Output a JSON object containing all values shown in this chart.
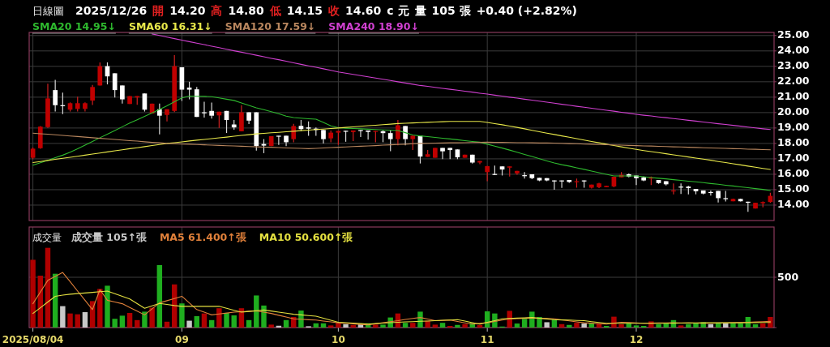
{
  "chart_data": [
    {
      "type": "candlestick",
      "title": "日線圖",
      "annotations": [
        "2025/12/26",
        "開",
        "14.20",
        "高",
        "14.80",
        "低",
        "14.15",
        "收",
        "14.60",
        "c 元",
        "量",
        "105 張",
        "+0.40 (+2.82%)"
      ],
      "categories": [
        "2025/08/04",
        null,
        null,
        null,
        null,
        null,
        null,
        null,
        null,
        null,
        null,
        null,
        null,
        null,
        null,
        null,
        null,
        null,
        null,
        null,
        "09",
        null,
        null,
        null,
        null,
        null,
        null,
        null,
        null,
        null,
        null,
        null,
        null,
        null,
        null,
        null,
        null,
        null,
        null,
        null,
        null,
        "10",
        null,
        null,
        null,
        null,
        null,
        null,
        null,
        null,
        null,
        null,
        null,
        null,
        null,
        null,
        null,
        null,
        null,
        null,
        null,
        "11",
        null,
        null,
        null,
        null,
        null,
        null,
        null,
        null,
        null,
        null,
        null,
        null,
        null,
        null,
        null,
        null,
        null,
        null,
        null,
        "12",
        null,
        null,
        null,
        null,
        null,
        null,
        null,
        null,
        null,
        null,
        null,
        null,
        null,
        null,
        null,
        null,
        null,
        null
      ],
      "ohlc": [
        [
          17.07,
          17.74,
          16.98,
          17.66
        ],
        [
          17.69,
          19.13,
          17.66,
          19.09
        ],
        [
          19.06,
          21.88,
          19.01,
          20.92
        ],
        [
          21.46,
          22.13,
          20.07,
          20.48
        ],
        [
          20.48,
          21.29,
          19.9,
          20.48
        ],
        [
          20.19,
          20.66,
          20.07,
          20.61
        ],
        [
          20.24,
          21.03,
          20.07,
          20.61
        ],
        [
          20.24,
          20.66,
          20.07,
          20.61
        ],
        [
          20.78,
          21.79,
          20.49,
          21.66
        ],
        [
          21.76,
          23.26,
          21.76,
          23.01
        ],
        [
          23.01,
          23.26,
          21.83,
          22.35
        ],
        [
          22.55,
          22.55,
          20.98,
          21.46
        ],
        [
          21.76,
          21.76,
          20.58,
          20.86
        ],
        [
          20.56,
          21.07,
          20.56,
          21.07
        ],
        [
          20.98,
          21.07,
          20.51,
          21.07
        ],
        [
          21.24,
          21.24,
          20.07,
          20.19
        ],
        [
          19.94,
          20.58,
          19.94,
          20.58
        ],
        [
          20.22,
          20.58,
          18.59,
          19.8
        ],
        [
          19.85,
          20.22,
          19.43,
          20.22
        ],
        [
          20.11,
          23.73,
          20.03,
          23.01
        ],
        [
          22.94,
          22.94,
          20.75,
          21.49
        ],
        [
          21.62,
          22.0,
          20.86,
          21.49
        ],
        [
          21.51,
          21.66,
          19.72,
          19.72
        ],
        [
          20.02,
          20.7,
          19.68,
          20.02
        ],
        [
          20.11,
          20.65,
          19.61,
          19.8
        ],
        [
          19.82,
          20.06,
          19.01,
          20.06
        ],
        [
          20.11,
          20.11,
          18.68,
          19.52
        ],
        [
          19.23,
          19.52,
          18.89,
          19.04
        ],
        [
          18.79,
          20.48,
          18.79,
          20.02
        ],
        [
          20.02,
          20.02,
          19.26,
          19.48
        ],
        [
          20.02,
          20.02,
          17.54,
          17.83
        ],
        [
          17.96,
          18.28,
          17.37,
          17.86
        ],
        [
          17.83,
          18.47,
          17.83,
          18.47
        ],
        [
          18.5,
          18.5,
          17.91,
          18.45
        ],
        [
          18.5,
          18.5,
          17.83,
          18.08
        ],
        [
          18.28,
          19.27,
          18.08,
          19.13
        ],
        [
          19.14,
          19.52,
          18.79,
          18.93
        ],
        [
          19.04,
          19.43,
          18.5,
          18.96
        ],
        [
          18.96,
          19.04,
          18.5,
          18.87
        ],
        [
          18.87,
          18.87,
          18.0,
          18.28
        ],
        [
          18.33,
          18.84,
          18.08,
          18.7
        ],
        [
          18.7,
          18.81,
          17.91,
          18.81
        ],
        [
          18.82,
          18.82,
          18.11,
          18.8
        ],
        [
          18.74,
          18.84,
          18.16,
          18.84
        ],
        [
          18.87,
          18.87,
          18.42,
          18.87
        ],
        [
          18.84,
          18.84,
          18.25,
          18.75
        ],
        [
          18.75,
          18.81,
          18.08,
          18.81
        ],
        [
          18.79,
          18.87,
          18.08,
          18.67
        ],
        [
          18.67,
          18.87,
          17.49,
          18.28
        ],
        [
          18.28,
          19.52,
          17.88,
          19.18
        ],
        [
          19.13,
          19.13,
          17.88,
          18.28
        ],
        [
          18.28,
          18.5,
          17.57,
          18.5
        ],
        [
          18.5,
          18.5,
          16.7,
          17.15
        ],
        [
          17.13,
          17.57,
          17.13,
          17.3
        ],
        [
          17.07,
          17.71,
          17.07,
          17.71
        ],
        [
          17.71,
          17.71,
          16.98,
          17.49
        ],
        [
          17.71,
          17.71,
          16.98,
          17.57
        ],
        [
          17.61,
          17.61,
          16.98,
          17.1
        ],
        [
          17.07,
          17.27,
          17.07,
          17.27
        ],
        [
          17.27,
          17.27,
          16.7,
          16.76
        ],
        [
          16.76,
          16.86,
          16.66,
          16.86
        ],
        [
          16.14,
          16.53,
          15.55,
          16.53
        ],
        [
          16.02,
          16.56,
          15.94,
          16.02
        ],
        [
          16.51,
          16.51,
          15.92,
          16.31
        ],
        [
          16.43,
          16.51,
          15.85,
          16.51
        ],
        [
          16.06,
          16.22,
          15.97,
          16.22
        ],
        [
          15.94,
          16.14,
          15.72,
          15.94
        ],
        [
          16.0,
          16.0,
          15.68,
          15.75
        ],
        [
          15.77,
          15.77,
          15.55,
          15.6
        ],
        [
          15.75,
          15.75,
          15.55,
          15.6
        ],
        [
          15.6,
          15.6,
          15.0,
          15.55
        ],
        [
          15.6,
          15.6,
          15.12,
          15.55
        ],
        [
          15.63,
          15.63,
          15.45,
          15.5
        ],
        [
          15.5,
          15.72,
          15.13,
          15.55
        ],
        [
          15.6,
          15.6,
          15.13,
          15.55
        ],
        [
          15.13,
          15.33,
          15.08,
          15.33
        ],
        [
          15.16,
          15.45,
          15.1,
          15.41
        ],
        [
          15.16,
          15.25,
          15.16,
          15.25
        ],
        [
          15.21,
          15.84,
          15.16,
          15.84
        ],
        [
          15.8,
          16.14,
          15.8,
          15.97
        ],
        [
          16.0,
          16.05,
          15.8,
          15.85
        ],
        [
          15.92,
          15.92,
          15.3,
          15.75
        ],
        [
          15.8,
          15.85,
          15.55,
          15.6
        ],
        [
          15.72,
          15.85,
          15.3,
          15.8
        ],
        [
          15.63,
          15.63,
          15.38,
          15.43
        ],
        [
          15.55,
          15.55,
          15.28,
          15.35
        ],
        [
          14.9,
          15.4,
          14.7,
          14.95
        ],
        [
          15.2,
          15.4,
          14.72,
          15.15
        ],
        [
          15.2,
          15.25,
          14.7,
          15.1
        ],
        [
          15.05,
          15.05,
          14.7,
          14.9
        ],
        [
          14.95,
          14.95,
          14.7,
          14.75
        ],
        [
          14.85,
          14.95,
          14.62,
          14.82
        ],
        [
          14.92,
          14.92,
          14.17,
          14.45
        ],
        [
          14.45,
          14.92,
          14.23,
          14.45
        ],
        [
          14.25,
          14.42,
          14.25,
          14.4
        ],
        [
          14.4,
          14.42,
          14.23,
          14.25
        ],
        [
          14.22,
          14.22,
          13.56,
          14.18
        ],
        [
          13.78,
          14.15,
          13.78,
          14.15
        ],
        [
          14.12,
          14.23,
          13.86,
          14.2
        ],
        [
          14.2,
          14.8,
          14.15,
          14.6
        ]
      ],
      "series": [
        {
          "name": "SMA20 14.95↓",
          "type": "line",
          "color": "#2eb82e",
          "values": [
            16.59,
            16.75,
            16.91,
            17.07,
            17.24,
            17.43,
            17.66,
            17.89,
            18.13,
            18.37,
            18.6,
            18.84,
            19.08,
            19.32,
            19.54,
            19.76,
            19.98,
            20.21,
            20.44,
            20.7,
            20.95,
            21.07,
            21.06,
            21.05,
            21.03,
            20.95,
            20.87,
            20.79,
            20.63,
            20.47,
            20.31,
            20.19,
            20.06,
            19.93,
            19.77,
            19.68,
            19.64,
            19.6,
            19.57,
            19.36,
            19.14,
            19.02,
            18.99,
            18.97,
            18.95,
            18.92,
            18.9,
            18.88,
            18.86,
            18.84,
            18.7,
            18.55,
            18.49,
            18.44,
            18.39,
            18.34,
            18.29,
            18.24,
            18.18,
            18.13,
            18.08,
            17.95,
            17.82,
            17.7,
            17.57,
            17.43,
            17.29,
            17.15,
            17.01,
            16.87,
            16.73,
            16.62,
            16.53,
            16.42,
            16.32,
            16.21,
            16.1,
            16.0,
            15.89,
            15.89,
            15.89,
            15.89,
            15.84,
            15.79,
            15.74,
            15.7,
            15.65,
            15.6,
            15.55,
            15.51,
            15.46,
            15.4,
            15.35,
            15.29,
            15.24,
            15.18,
            15.13,
            15.07,
            15.02,
            14.95
          ]
        },
        {
          "name": "SMA60 16.31↓",
          "type": "line",
          "color": "#e8e84a",
          "values": [
            16.76,
            16.83,
            16.9,
            16.97,
            17.04,
            17.1,
            17.17,
            17.24,
            17.31,
            17.38,
            17.45,
            17.52,
            17.59,
            17.66,
            17.72,
            17.79,
            17.86,
            17.93,
            18.0,
            18.05,
            18.1,
            18.16,
            18.21,
            18.26,
            18.31,
            18.36,
            18.41,
            18.47,
            18.52,
            18.57,
            18.62,
            18.65,
            18.69,
            18.72,
            18.76,
            18.79,
            18.83,
            18.86,
            18.9,
            18.93,
            18.97,
            19.0,
            19.04,
            19.07,
            19.11,
            19.15,
            19.18,
            19.22,
            19.25,
            19.29,
            19.31,
            19.33,
            19.35,
            19.37,
            19.39,
            19.41,
            19.43,
            19.43,
            19.43,
            19.43,
            19.43,
            19.36,
            19.28,
            19.21,
            19.13,
            19.04,
            18.95,
            18.85,
            18.76,
            18.67,
            18.58,
            18.49,
            18.4,
            18.31,
            18.22,
            18.13,
            18.04,
            17.95,
            17.86,
            17.78,
            17.69,
            17.61,
            17.54,
            17.47,
            17.4,
            17.33,
            17.26,
            17.19,
            17.12,
            17.05,
            16.98,
            16.91,
            16.83,
            16.76,
            16.68,
            16.61,
            16.53,
            16.46,
            16.38,
            16.31
          ]
        },
        {
          "name": "SMA120 17.59↓",
          "type": "line",
          "color": "#b8865e",
          "values": [
            18.67,
            18.63,
            18.6,
            18.56,
            18.52,
            18.48,
            18.45,
            18.41,
            18.37,
            18.33,
            18.3,
            18.26,
            18.22,
            18.18,
            18.15,
            18.11,
            18.07,
            18.04,
            18.0,
            17.98,
            17.96,
            17.95,
            17.93,
            17.91,
            17.89,
            17.87,
            17.85,
            17.84,
            17.82,
            17.8,
            17.78,
            17.76,
            17.75,
            17.73,
            17.71,
            17.69,
            17.68,
            17.66,
            17.68,
            17.71,
            17.73,
            17.75,
            17.77,
            17.8,
            17.82,
            17.84,
            17.86,
            17.89,
            17.91,
            17.93,
            17.95,
            17.98,
            18.0,
            18.01,
            18.02,
            18.03,
            18.04,
            18.04,
            18.05,
            18.06,
            18.07,
            18.08,
            18.07,
            18.07,
            18.06,
            18.05,
            18.05,
            18.04,
            18.03,
            18.03,
            18.02,
            18.01,
            17.99,
            17.98,
            17.96,
            17.95,
            17.93,
            17.92,
            17.9,
            17.89,
            17.87,
            17.86,
            17.84,
            17.83,
            17.81,
            17.8,
            17.78,
            17.77,
            17.75,
            17.74,
            17.72,
            17.71,
            17.69,
            17.68,
            17.66,
            17.65,
            17.63,
            17.62,
            17.6,
            17.59
          ]
        },
        {
          "name": "SMA240 18.90↓",
          "type": "line",
          "color": "#d040d0",
          "values": [
            null,
            null,
            null,
            null,
            null,
            null,
            null,
            null,
            null,
            null,
            null,
            null,
            null,
            null,
            null,
            null,
            25.1,
            25.0,
            24.9,
            24.8,
            24.7,
            24.6,
            24.5,
            24.41,
            24.31,
            24.21,
            24.11,
            24.01,
            23.92,
            23.82,
            23.72,
            23.62,
            23.52,
            23.43,
            23.33,
            23.23,
            23.13,
            23.03,
            22.94,
            22.84,
            22.74,
            22.64,
            22.56,
            22.48,
            22.4,
            22.32,
            22.24,
            22.16,
            22.08,
            22.0,
            21.92,
            21.84,
            21.76,
            21.7,
            21.64,
            21.57,
            21.51,
            21.45,
            21.39,
            21.33,
            21.26,
            21.2,
            21.13,
            21.07,
            21.0,
            20.94,
            20.87,
            20.81,
            20.74,
            20.68,
            20.61,
            20.54,
            20.48,
            20.41,
            20.35,
            20.28,
            20.22,
            20.15,
            20.09,
            20.02,
            19.96,
            19.89,
            19.83,
            19.78,
            19.72,
            19.67,
            19.61,
            19.56,
            19.5,
            19.45,
            19.39,
            19.34,
            19.28,
            19.23,
            19.17,
            19.12,
            19.06,
            19.01,
            18.95,
            18.9
          ]
        }
      ],
      "ylim": [
        13.0,
        25.2
      ],
      "yticks": [
        {
          "value": 14,
          "label": "14.00"
        },
        {
          "value": 15,
          "label": "15.00"
        },
        {
          "value": 16,
          "label": "16.00"
        },
        {
          "value": 17,
          "label": "17.00"
        },
        {
          "value": 18,
          "label": "18.00"
        },
        {
          "value": 19,
          "label": "19.00"
        },
        {
          "value": 20,
          "label": "20.00"
        },
        {
          "value": 21,
          "label": "21.00"
        },
        {
          "value": 22,
          "label": "22.00"
        },
        {
          "value": 23,
          "label": "23.00"
        },
        {
          "value": 24,
          "label": "24.00"
        },
        {
          "value": 25,
          "label": "25.00"
        }
      ],
      "grid": true,
      "legend": "top left",
      "tick_labels": "y"
    },
    {
      "type": "bar",
      "title": "成交量",
      "categories": [
        "2025/08/04",
        null,
        null,
        null,
        null,
        null,
        null,
        null,
        null,
        null,
        null,
        null,
        null,
        null,
        null,
        null,
        null,
        null,
        null,
        null,
        "09",
        null,
        null,
        null,
        null,
        null,
        null,
        null,
        null,
        null,
        null,
        null,
        null,
        null,
        null,
        null,
        null,
        null,
        null,
        null,
        null,
        "10",
        null,
        null,
        null,
        null,
        null,
        null,
        null,
        null,
        null,
        null,
        null,
        null,
        null,
        null,
        null,
        null,
        null,
        null,
        null,
        "11",
        null,
        null,
        null,
        null,
        null,
        null,
        null,
        null,
        null,
        null,
        null,
        null,
        null,
        null,
        null,
        null,
        null,
        null,
        null,
        "12",
        null,
        null,
        null,
        null,
        null,
        null,
        null,
        null,
        null,
        null,
        null,
        null,
        null,
        null,
        null,
        null,
        null,
        null
      ],
      "series": [
        {
          "name": "成交量 105↑張",
          "type": "bar",
          "values": [
            674,
            516,
            793,
            535,
            213,
            140,
            132,
            153,
            263,
            384,
            416,
            87,
            118,
            145,
            74,
            158,
            197,
            621,
            58,
            429,
            240,
            68,
            113,
            140,
            74,
            192,
            145,
            121,
            192,
            74,
            319,
            219,
            29,
            18,
            74,
            105,
            169,
            13,
            42,
            42,
            21,
            47,
            34,
            26,
            34,
            42,
            29,
            29,
            100,
            140,
            47,
            47,
            158,
            68,
            29,
            47,
            16,
            26,
            34,
            47,
            26,
            161,
            140,
            10,
            166,
            40,
            87,
            158,
            105,
            53,
            79,
            34,
            26,
            47,
            40,
            42,
            40,
            16,
            108,
            34,
            40,
            21,
            16,
            61,
            34,
            40,
            74,
            21,
            34,
            42,
            53,
            34,
            42,
            40,
            40,
            40,
            105,
            32,
            42,
            105
          ],
          "colors": [
            "#b00000",
            "#b00000",
            "#b00000",
            "#1fae1f",
            "#c8c8c8",
            "#b00000",
            "#b00000",
            "#c8c8c8",
            "#b00000",
            "#b00000",
            "#1fae1f",
            "#1fae1f",
            "#1fae1f",
            "#b00000",
            "#b00000",
            "#1fae1f",
            "#b00000",
            "#1fae1f",
            "#b00000",
            "#b00000",
            "#1fae1f",
            "#c8c8c8",
            "#1fae1f",
            "#b00000",
            "#1fae1f",
            "#b00000",
            "#1fae1f",
            "#1fae1f",
            "#b00000",
            "#1fae1f",
            "#1fae1f",
            "#1fae1f",
            "#b00000",
            "#c8c8c8",
            "#1fae1f",
            "#b00000",
            "#1fae1f",
            "#c8c8c8",
            "#1fae1f",
            "#1fae1f",
            "#b00000",
            "#b00000",
            "#c8c8c8",
            "#b00000",
            "#c8c8c8",
            "#1fae1f",
            "#b00000",
            "#1fae1f",
            "#1fae1f",
            "#b00000",
            "#1fae1f",
            "#b00000",
            "#1fae1f",
            "#b00000",
            "#b00000",
            "#1fae1f",
            "#b00000",
            "#1fae1f",
            "#b00000",
            "#1fae1f",
            "#b00000",
            "#1fae1f",
            "#1fae1f",
            "#1fae1f",
            "#b00000",
            "#1fae1f",
            "#1fae1f",
            "#1fae1f",
            "#1fae1f",
            "#c8c8c8",
            "#1fae1f",
            "#b00000",
            "#1fae1f",
            "#b00000",
            "#c8c8c8",
            "#1fae1f",
            "#b00000",
            "#1fae1f",
            "#b00000",
            "#b00000",
            "#1fae1f",
            "#1fae1f",
            "#1fae1f",
            "#b00000",
            "#1fae1f",
            "#1fae1f",
            "#1fae1f",
            "#b00000",
            "#1fae1f",
            "#1fae1f",
            "#1fae1f",
            "#c8c8c8",
            "#1fae1f",
            "#c8c8c8",
            "#1fae1f",
            "#1fae1f",
            "#1fae1f",
            "#1fae1f",
            "#b00000",
            "#b00000"
          ]
        },
        {
          "name": "MA5 61.400↑張",
          "type": "line",
          "color": "#e0803a",
          "values": [
            237,
            353,
            469,
            508,
            548,
            456,
            363,
            271,
            179,
            377,
            271,
            254,
            237,
            200,
            163,
            126,
            186,
            245,
            267,
            289,
            311,
            245,
            179,
            153,
            126,
            135,
            144,
            153,
            157,
            162,
            166,
            153,
            140,
            122,
            105,
            87,
            83,
            78,
            74,
            65,
            56,
            47,
            42,
            37,
            31,
            26,
            37,
            47,
            58,
            68,
            80,
            91,
            100,
            84,
            68,
            71,
            74,
            61,
            47,
            34,
            41,
            47,
            60,
            74,
            87,
            90,
            92,
            95,
            92,
            90,
            87,
            77,
            67,
            57,
            47,
            43,
            38,
            34,
            44,
            53,
            49,
            46,
            42,
            43,
            45,
            46,
            47,
            46,
            45,
            44,
            43,
            42,
            44,
            46,
            48,
            51,
            53,
            56,
            59,
            61.4
          ]
        },
        {
          "name": "MA10 50.600↑張",
          "type": "line",
          "color": "#e4e040",
          "values": [
            140,
            197,
            254,
            311,
            322,
            332,
            338,
            344,
            350,
            357,
            363,
            337,
            310,
            284,
            238,
            192,
            216,
            240,
            230,
            219,
            211,
            211,
            211,
            211,
            211,
            211,
            192,
            172,
            153,
            160,
            167,
            174,
            164,
            153,
            143,
            132,
            126,
            119,
            113,
            93,
            73,
            53,
            48,
            44,
            39,
            34,
            39,
            44,
            48,
            53,
            56,
            59,
            62,
            65,
            68,
            72,
            75,
            79,
            64,
            49,
            34,
            52,
            69,
            87,
            90,
            94,
            97,
            100,
            93,
            86,
            79,
            76,
            74,
            71,
            68,
            59,
            51,
            42,
            42,
            42,
            42,
            42,
            42,
            42,
            42,
            42,
            43,
            44,
            45,
            46,
            47,
            47,
            47,
            47,
            47,
            47,
            48,
            49,
            50,
            50.6
          ]
        }
      ],
      "ylim": [
        0,
        1000
      ],
      "yticks": [
        {
          "value": 0,
          "label": null
        },
        500
      ],
      "grid": true,
      "legend": "top left"
    }
  ]
}
